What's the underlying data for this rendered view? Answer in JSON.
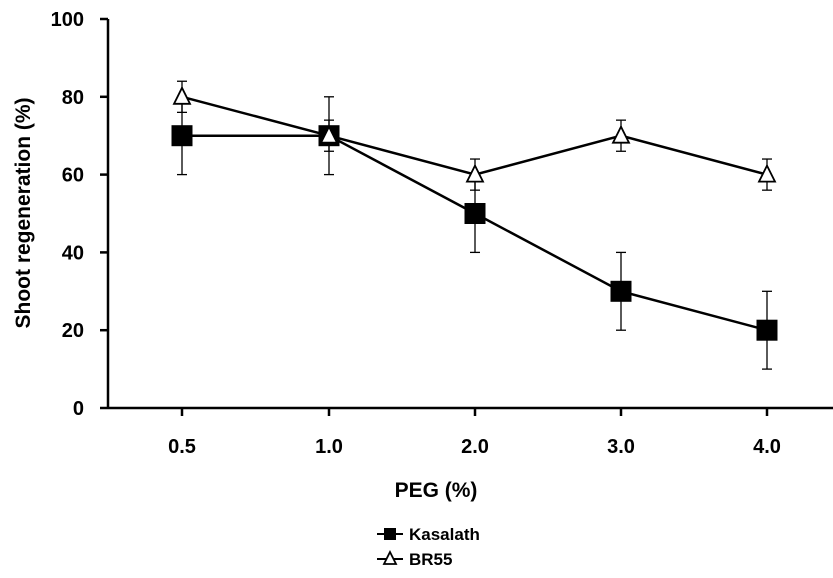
{
  "chart_data": {
    "type": "line",
    "title": "",
    "xlabel": "PEG (%)",
    "ylabel": "Shoot regeneration (%)",
    "categories": [
      "0.5",
      "1.0",
      "2.0",
      "3.0",
      "4.0"
    ],
    "ylim": [
      0,
      100
    ],
    "yticks": [
      "0",
      "20",
      "40",
      "60",
      "80",
      "100"
    ],
    "grid": false,
    "legend_position": "bottom-center",
    "series": [
      {
        "name": "Kasalath",
        "marker": "filled-square",
        "color": "#000000",
        "values": [
          70,
          70,
          50,
          30,
          20
        ],
        "error": [
          10,
          10,
          10,
          10,
          10
        ]
      },
      {
        "name": "BR55",
        "marker": "open-triangle",
        "color": "#000000",
        "values": [
          80,
          70,
          60,
          70,
          60
        ],
        "error": [
          4,
          4,
          4,
          4,
          4
        ]
      }
    ]
  }
}
